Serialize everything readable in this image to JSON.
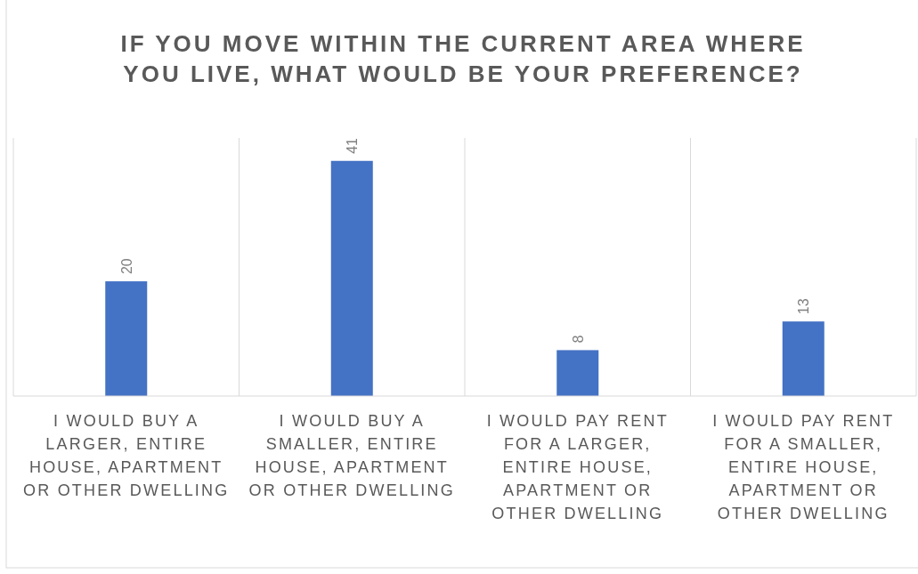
{
  "chart_data": {
    "type": "bar",
    "title": "IF YOU MOVE WITHIN THE CURRENT AREA WHERE YOU LIVE, WHAT WOULD BE YOUR PREFERENCE?",
    "categories": [
      "I WOULD BUY A LARGER, ENTIRE HOUSE, APARTMENT OR OTHER DWELLING",
      "I WOULD BUY A SMALLER, ENTIRE HOUSE, APARTMENT OR OTHER DWELLING",
      "I WOULD PAY RENT FOR A LARGER, ENTIRE HOUSE, APARTMENT OR OTHER DWELLING",
      "I WOULD PAY RENT FOR A SMALLER, ENTIRE HOUSE, APARTMENT OR OTHER DWELLING"
    ],
    "values": [
      20,
      41,
      8,
      13
    ],
    "color": "#4472c4",
    "ylim": [
      0,
      45
    ],
    "tick_labels": "x",
    "grid": "x",
    "data_labels": true
  }
}
